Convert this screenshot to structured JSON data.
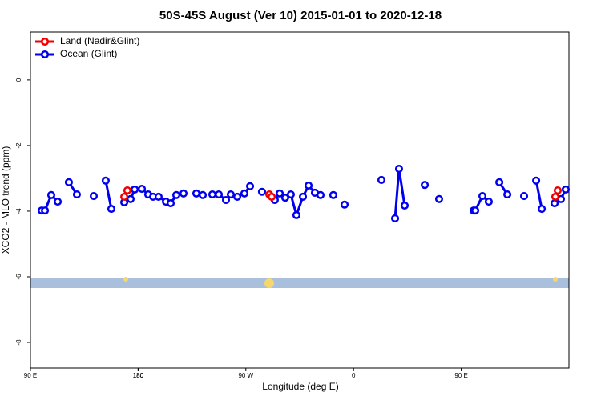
{
  "chart_data": {
    "type": "line",
    "title": "50S-45S August (Ver 10)   2015-01-01 to 2020-12-18",
    "x_label": "Longitude (deg E)",
    "y_label": "XCO2 - MLO trend (ppm)",
    "xlim": [
      90,
      540
    ],
    "xticks": [
      {
        "value": 90,
        "label": "90 E"
      },
      180,
      {
        "value": 270,
        "label": "90 W"
      },
      {
        "value": 360,
        "label": "0"
      },
      {
        "value": 450,
        "label": "90 E"
      },
      180
    ],
    "ylim": [
      -8.78,
      1.46
    ],
    "yticks": [
      0,
      -2,
      -4,
      -6,
      -8
    ],
    "legend": "top-left",
    "series": [
      {
        "name": "Land (Nadir&Glint)",
        "color": "#ee0000",
        "x": [
          168.4,
          171.0,
          null,
          289.6,
          291.6,
          null,
          528.6,
          530.6
        ],
        "values": [
          -3.56,
          -3.37,
          null,
          -3.49,
          -3.56,
          null,
          -3.56,
          -3.37
        ]
      },
      {
        "name": "Ocean (Glint)",
        "color": "#0000ee",
        "x": [
          99.4,
          102.1,
          107.4,
          112.8,
          null,
          122.1,
          128.8,
          null,
          142.9,
          null,
          152.9,
          157.6,
          null,
          168.4,
          173.7,
          177.1,
          183.1,
          188.4,
          192.5,
          197.1,
          203.2,
          207.2,
          211.9,
          217.9,
          null,
          228.6,
          234.0,
          null,
          242.0,
          247.4,
          253.4,
          257.4,
          262.8,
          268.8,
          273.5,
          null,
          283.5,
          null,
          294.2,
          298.3,
          302.9,
          307.6,
          312.3,
          317.7,
          322.4,
          327.7,
          332.4,
          null,
          343.1,
          null,
          352.5,
          null,
          383.3,
          null,
          394.7,
          398.0,
          402.7,
          null,
          419.5,
          null,
          431.5,
          null,
          460.3,
          461.7,
          467.7,
          473.0,
          null,
          481.8,
          488.5,
          null,
          502.5,
          null,
          512.6,
          517.3,
          null,
          528.0,
          533.3,
          537.3
        ],
        "values": [
          -3.98,
          -3.98,
          -3.51,
          -3.71,
          null,
          -3.12,
          -3.49,
          null,
          -3.54,
          null,
          -3.07,
          -3.93,
          null,
          -3.73,
          -3.63,
          -3.34,
          -3.32,
          -3.49,
          -3.56,
          -3.56,
          -3.71,
          -3.76,
          -3.51,
          -3.46,
          null,
          -3.46,
          -3.51,
          null,
          -3.49,
          -3.49,
          -3.66,
          -3.49,
          -3.56,
          -3.46,
          -3.24,
          null,
          -3.41,
          null,
          -3.66,
          -3.46,
          -3.59,
          -3.49,
          -4.12,
          -3.56,
          -3.22,
          -3.44,
          -3.51,
          null,
          -3.51,
          null,
          -3.8,
          null,
          -3.05,
          null,
          -4.22,
          -2.71,
          -3.83,
          null,
          -3.2,
          null,
          -3.63,
          null,
          -3.98,
          -3.98,
          -3.54,
          -3.71,
          null,
          -3.12,
          -3.49,
          null,
          -3.54,
          null,
          -3.07,
          -3.93,
          null,
          -3.76,
          -3.63,
          -3.34
        ]
      }
    ]
  }
}
